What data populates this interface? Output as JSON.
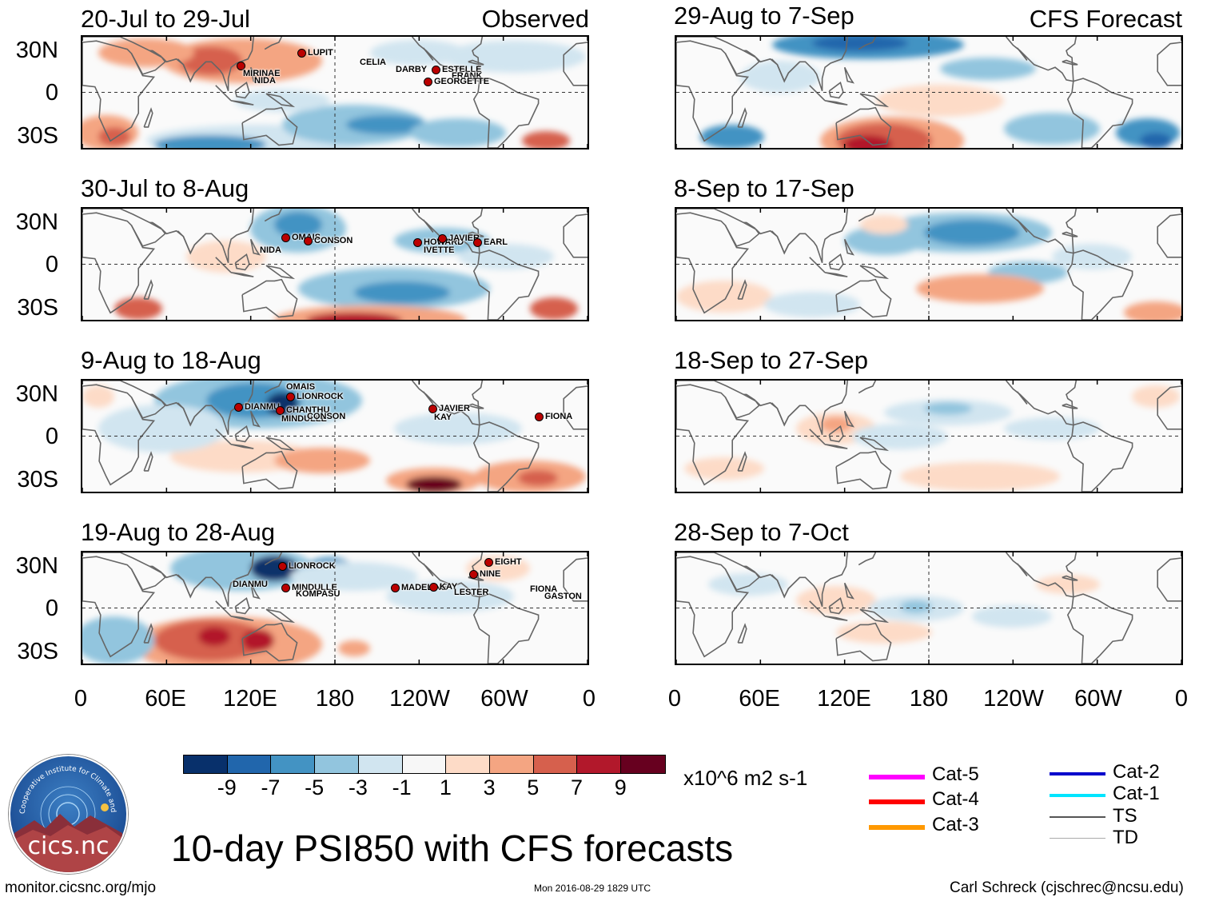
{
  "panels": [
    {
      "title": "20-Jul to 29-Jul",
      "tag": "Observed"
    },
    {
      "title": "29-Aug to 7-Sep",
      "tag": "CFS Forecast"
    },
    {
      "title": "30-Jul to 8-Aug",
      "tag": ""
    },
    {
      "title": "8-Sep to 17-Sep",
      "tag": ""
    },
    {
      "title": "9-Aug to 18-Aug",
      "tag": ""
    },
    {
      "title": "18-Sep to 27-Sep",
      "tag": ""
    },
    {
      "title": "19-Aug to 28-Aug",
      "tag": ""
    },
    {
      "title": "28-Sep to 7-Oct",
      "tag": ""
    }
  ],
  "lat_labels": [
    "30N",
    "0",
    "30S"
  ],
  "lon_labels": [
    "0",
    "60E",
    "120E",
    "180",
    "120W",
    "60W",
    "0"
  ],
  "storms": {
    "p0": [
      "LUPIT",
      "CELIA",
      "DARBY",
      "ESTELLE",
      "FRANK",
      "GEORGETTE",
      "MIRINAE",
      "NIDA"
    ],
    "p2": [
      "OMAIS",
      "CONSON",
      "NIDA",
      "HOWARD",
      "IVETTE",
      "JAVIER",
      "EARL"
    ],
    "p4": [
      "OMAIS",
      "LIONROCK",
      "DIANMU",
      "CHANTHU",
      "MINDULLE",
      "CONSON",
      "JAVIER",
      "KAY",
      "FIONA"
    ],
    "p6": [
      "LIONROCK",
      "DIANMU",
      "MINDULLE",
      "KOMPASU",
      "MADELINE",
      "KAY",
      "LESTER",
      "EIGHT",
      "NINE",
      "FIONA",
      "GASTON"
    ]
  },
  "colorbar": {
    "colors": [
      "#08306b",
      "#2166ac",
      "#4393c3",
      "#92c5de",
      "#d1e5f0",
      "#f7f7f7",
      "#fddbc7",
      "#f4a582",
      "#d6604d",
      "#b2182b",
      "#67001f"
    ],
    "labels": [
      "-9",
      "-7",
      "-5",
      "-3",
      "-1",
      "1",
      "3",
      "5",
      "7",
      "9"
    ],
    "units": "x10^6 m2 s-1"
  },
  "legend": [
    {
      "label": "Cat-5",
      "color": "#ff00ff"
    },
    {
      "label": "Cat-4",
      "color": "#ff0000"
    },
    {
      "label": "Cat-3",
      "color": "#ff9900"
    },
    {
      "label": "Cat-2",
      "color": "#0000cc"
    },
    {
      "label": "Cat-1",
      "color": "#00e5ff"
    },
    {
      "label": "TS",
      "color": "#555555"
    },
    {
      "label": "TD",
      "color": "#aaaaaa"
    }
  ],
  "main_title": "10-day PSI850 with CFS forecasts",
  "footer": {
    "left": "monitor.cicsnc.org/mjo",
    "center": "Mon 2016-08-29 1829 UTC",
    "right": "Carl Schreck (cjschrec@ncsu.edu)"
  },
  "logo": {
    "text": "cics.nc",
    "ring": "Cooperative Institute for Climate and Satellites"
  }
}
